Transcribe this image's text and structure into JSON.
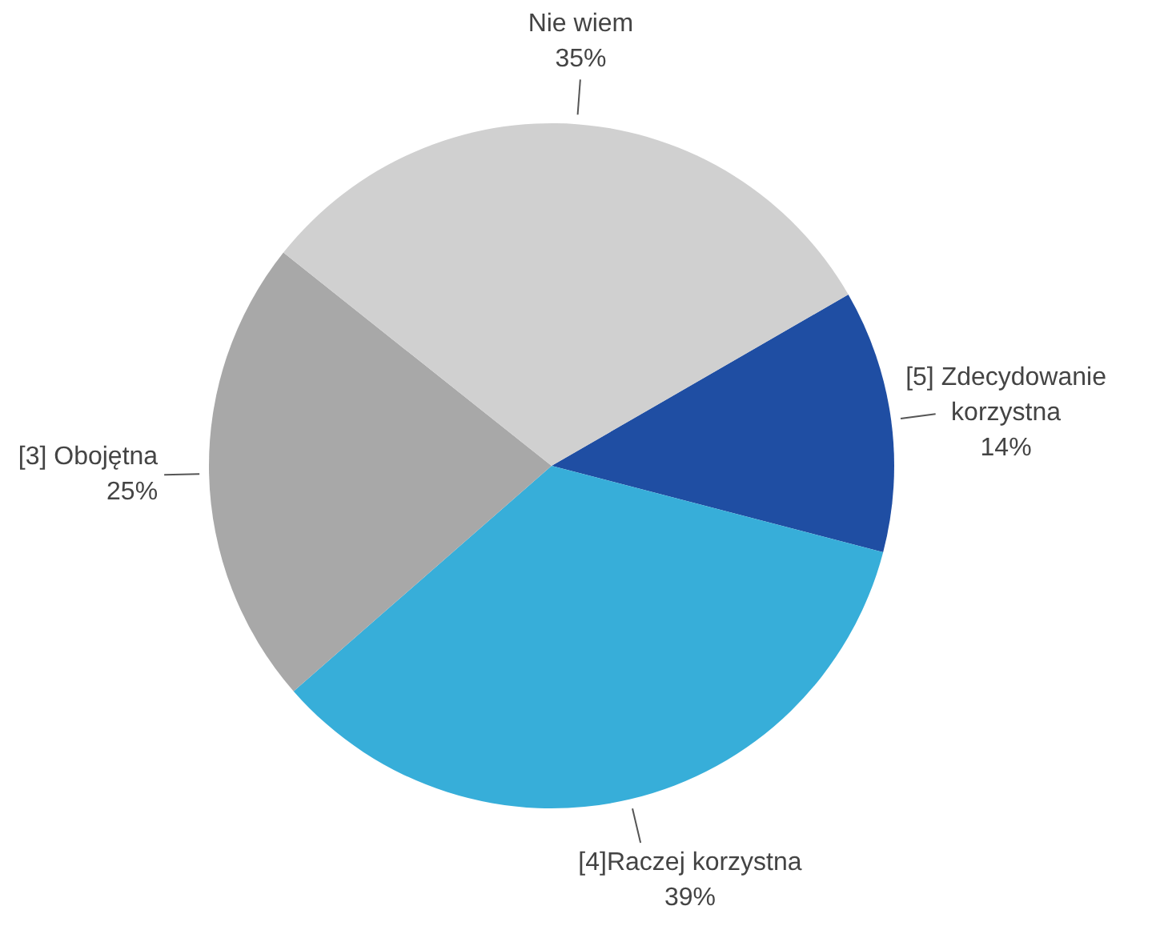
{
  "chart_data": {
    "type": "pie",
    "categories": [
      "[5] Zdecydowanie korzystna",
      "[4]Raczej korzystna",
      "[3] Obojętna",
      "Nie wiem"
    ],
    "values": [
      14,
      39,
      25,
      35
    ],
    "value_labels": [
      "14%",
      "39%",
      "25%",
      "35%"
    ],
    "colors": [
      "#1f4ea3",
      "#37aed9",
      "#a8a8a8",
      "#d0d0d0"
    ]
  }
}
